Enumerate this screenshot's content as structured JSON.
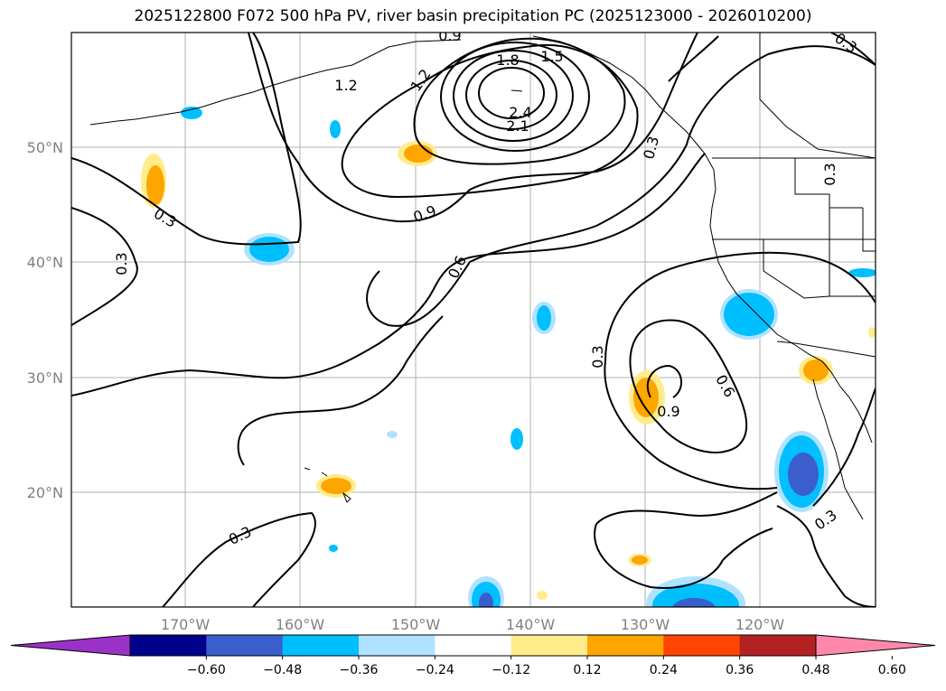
{
  "title": "2025122800 F072 500 hPa PV, river basin precipitation PC (2025123000 - 2026010200)",
  "lat_labels": [
    "50°N",
    "40°N",
    "30°N",
    "20°N"
  ],
  "lon_labels": [
    "170°W",
    "160°W",
    "150°W",
    "140°W",
    "130°W",
    "120°W"
  ],
  "contour_labels": [
    "0.9",
    "1.2",
    "1.2",
    "1.8",
    "1.5",
    "2.4",
    "2.1",
    "0.9",
    "0.3",
    "0.3",
    "0.3",
    "0.6",
    "0.3",
    "0.6",
    "0.9",
    "0.3",
    "0.3",
    "0.3",
    "0.3"
  ],
  "colorbar": {
    "ticks": [
      "−0.60",
      "−0.48",
      "−0.36",
      "−0.24",
      "−0.12",
      "0.12",
      "0.24",
      "0.36",
      "0.48",
      "0.60"
    ],
    "colors": [
      "#9b32c8",
      "#00008b",
      "#3a5fcd",
      "#00bfff",
      "#b0e2ff",
      "#ffffff",
      "#ffec8b",
      "#ffa500",
      "#ff4500",
      "#b22222",
      "#ff88aa"
    ]
  }
}
